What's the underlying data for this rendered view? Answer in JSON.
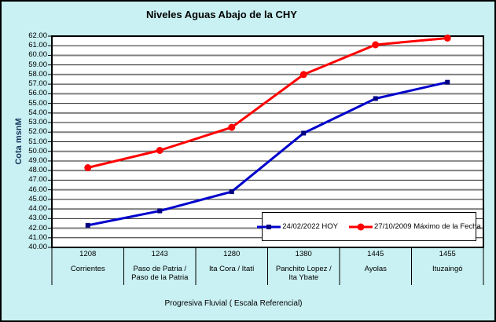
{
  "window": {
    "background_color": "#C9F0F2",
    "border_color": "#000000"
  },
  "chart_data": {
    "type": "line",
    "title": "Niveles Aguas Abajo de la CHY",
    "xlabel": "Progresiva Fluvial ( Escala Referencial)",
    "ylabel": "Cota msnM",
    "ylim": [
      40,
      62
    ],
    "y_tick_step": 1,
    "y_tick_decimals": 2,
    "grid": true,
    "legend_position": "bottom-right-inside",
    "plot_bg": "#FFFFFF",
    "gridline_major_color": "#808080",
    "gridline_minor_color": "#202020",
    "categories": [
      "1208",
      "1243",
      "1280",
      "1380",
      "1445",
      "1455"
    ],
    "category_names": [
      [
        "Corrientes"
      ],
      [
        "Paso de Patria /",
        "Paso de la Patria"
      ],
      [
        "Ita Cora / Itatí"
      ],
      [
        "Panchito Lopez /",
        "Ita Ybate"
      ],
      [
        "Ayolas"
      ],
      [
        "Ituzaingó"
      ]
    ],
    "series": [
      {
        "name": "24/02/2022 HOY",
        "color": "#0000CC",
        "marker": "square",
        "marker_color": "#000080",
        "values": [
          42.3,
          43.8,
          45.8,
          51.9,
          55.5,
          57.2
        ]
      },
      {
        "name": "27/10/2009 Máximo de la Fecha",
        "color": "#FF0000",
        "marker": "circle",
        "marker_color": "#FF0000",
        "values": [
          48.3,
          50.1,
          52.5,
          58.0,
          61.1,
          61.8
        ]
      }
    ]
  }
}
